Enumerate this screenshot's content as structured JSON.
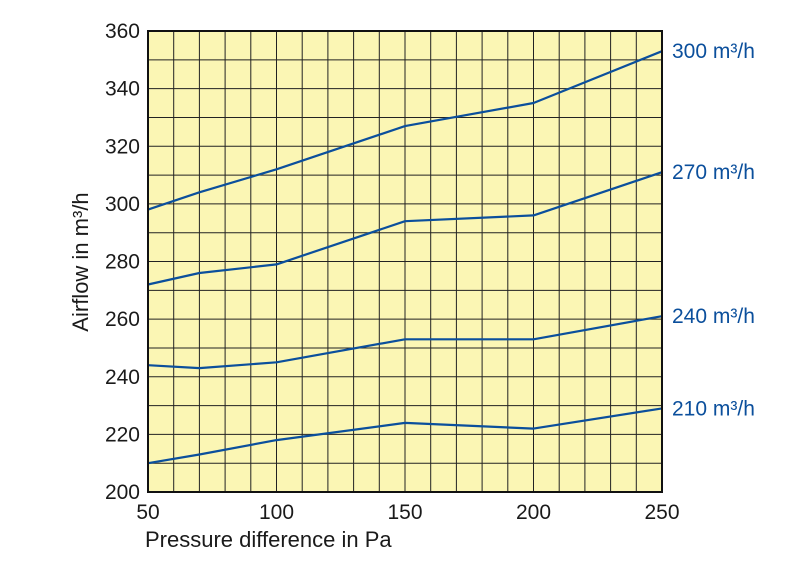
{
  "chart_data": {
    "type": "line",
    "xlabel": "Pressure difference in Pa",
    "ylabel": "Airflow in m³/h",
    "xlim": [
      50,
      250
    ],
    "ylim": [
      200,
      360
    ],
    "x_ticks": [
      "50",
      "100",
      "150",
      "200",
      "250"
    ],
    "y_ticks": [
      "200",
      "220",
      "240",
      "260",
      "280",
      "300",
      "320",
      "340",
      "360"
    ],
    "grid": true,
    "background_color": "#fbf6b4",
    "line_color": "#0b4f9c",
    "series": [
      {
        "name": "300 m³/h",
        "x": [
          50,
          70,
          100,
          150,
          200,
          250
        ],
        "y": [
          298,
          304,
          312,
          327,
          335,
          353
        ]
      },
      {
        "name": "270 m³/h",
        "x": [
          50,
          70,
          100,
          150,
          200,
          250
        ],
        "y": [
          272,
          276,
          279,
          294,
          296,
          311
        ]
      },
      {
        "name": "240 m³/h",
        "x": [
          50,
          70,
          100,
          150,
          200,
          250
        ],
        "y": [
          244,
          243,
          245,
          253,
          253,
          261
        ]
      },
      {
        "name": "210 m³/h",
        "x": [
          50,
          70,
          100,
          150,
          200,
          250
        ],
        "y": [
          210,
          213,
          218,
          224,
          222,
          229
        ]
      }
    ]
  }
}
